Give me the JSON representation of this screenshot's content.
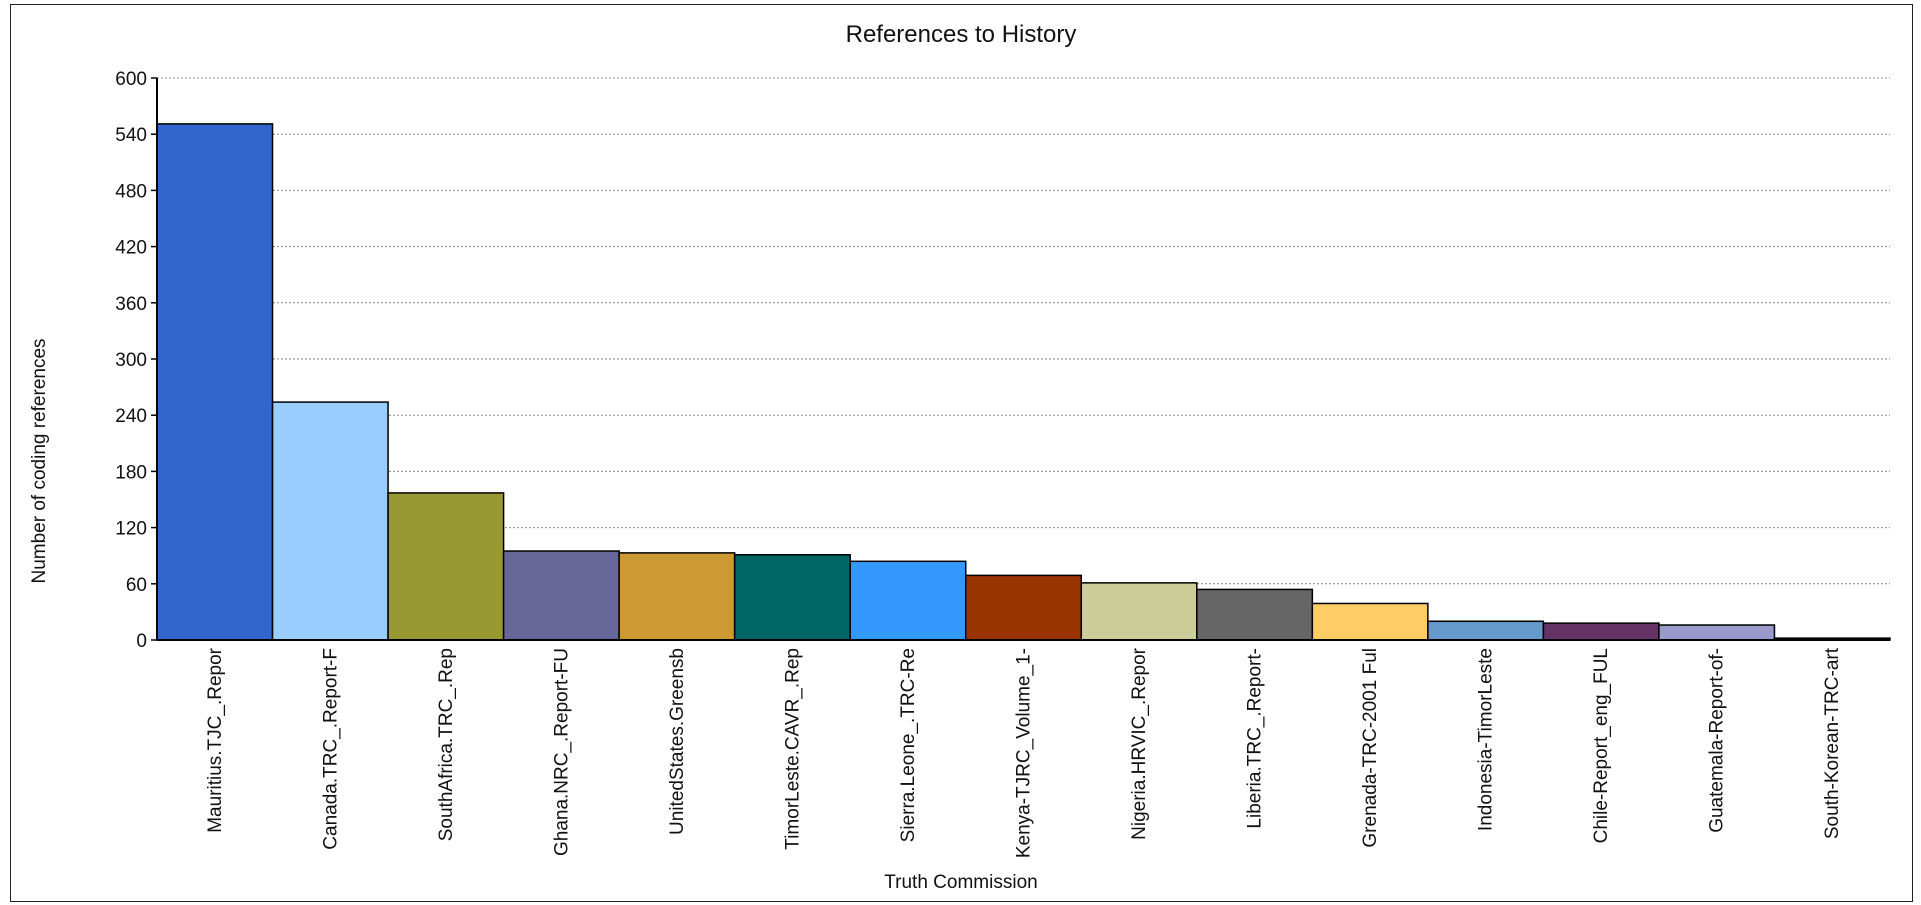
{
  "chart_data": {
    "type": "bar",
    "title": "References to History",
    "xlabel": "Truth Commission",
    "ylabel": "Number of coding references",
    "ylim": [
      0,
      600
    ],
    "yticks": [
      0,
      60,
      120,
      180,
      240,
      300,
      360,
      420,
      480,
      540,
      600
    ],
    "grid": true,
    "legend": "none",
    "categories": [
      "Mauritius.TJC_.Repor",
      "Canada.TRC_.Report-F",
      "SouthAfrica.TRC_.Rep",
      "Ghana.NRC_.Report-FU",
      "UnitedStates.Greensb",
      "TimorLeste.CAVR_.Rep",
      "Sierra.Leone_.TRC-Re",
      "Kenya-TJRC_Volume_1-",
      "Nigeria.HRVIC_.Repor",
      "Liberia.TRC_.Report-",
      "Grenada-TRC-2001 Ful",
      "Indonesia-TimorLeste",
      "Chile-Report_eng_FUL",
      "Guatemala-Report-of-",
      "South-Korean-TRC-art"
    ],
    "values": [
      551,
      254,
      157,
      95,
      93,
      91,
      84,
      69,
      61,
      54,
      39,
      20,
      18,
      16,
      2
    ],
    "colors": [
      "#3366cc",
      "#99ccff",
      "#999933",
      "#666699",
      "#cc9933",
      "#006666",
      "#3399ff",
      "#993300",
      "#cccc99",
      "#666666",
      "#ffcc66",
      "#6699cc",
      "#663366",
      "#9999cc",
      "#333333"
    ]
  }
}
